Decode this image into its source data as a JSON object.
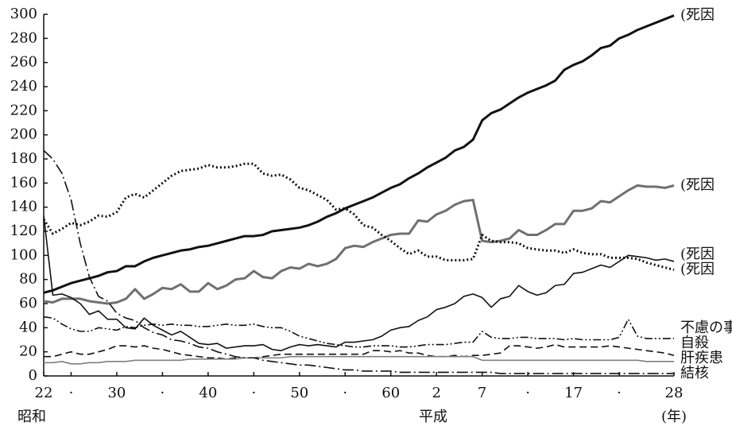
{
  "chart_data": {
    "type": "line",
    "x": [
      1947,
      1948,
      1949,
      1950,
      1951,
      1952,
      1953,
      1954,
      1955,
      1956,
      1957,
      1958,
      1959,
      1960,
      1961,
      1962,
      1963,
      1964,
      1965,
      1966,
      1967,
      1968,
      1969,
      1970,
      1971,
      1972,
      1973,
      1974,
      1975,
      1976,
      1977,
      1978,
      1979,
      1980,
      1981,
      1982,
      1983,
      1984,
      1985,
      1986,
      1987,
      1988,
      1989,
      1990,
      1991,
      1992,
      1993,
      1994,
      1995,
      1996,
      1997,
      1998,
      1999,
      2000,
      2001,
      2002,
      2003,
      2004,
      2005,
      2006,
      2007,
      2008,
      2009,
      2010,
      2011,
      2012,
      2013,
      2014,
      2015,
      2016
    ],
    "xlim": [
      1947,
      2016
    ],
    "xticks": [
      {
        "value": 1947,
        "label": "22"
      },
      {
        "value": 1950,
        "label": "·"
      },
      {
        "value": 1955,
        "label": "30"
      },
      {
        "value": 1960,
        "label": "·"
      },
      {
        "value": 1965,
        "label": "40"
      },
      {
        "value": 1970,
        "label": "·"
      },
      {
        "value": 1975,
        "label": "50"
      },
      {
        "value": 1980,
        "label": "·"
      },
      {
        "value": 1985,
        "label": "60"
      },
      {
        "value": 1990,
        "label": "2"
      },
      {
        "value": 1995,
        "label": "7"
      },
      {
        "value": 2000,
        "label": "·"
      },
      {
        "value": 2005,
        "label": "17"
      },
      {
        "value": 2010,
        "label": "·"
      },
      {
        "value": 2016,
        "label": "28"
      }
    ],
    "era_labels": [
      "昭和",
      "平成"
    ],
    "xlabel": "(年)",
    "ylim": [
      0,
      300
    ],
    "yticks": [
      0,
      20,
      40,
      60,
      80,
      100,
      120,
      140,
      160,
      180,
      200,
      220,
      240,
      260,
      280,
      300
    ],
    "grid": false,
    "series": [
      {
        "name": "(死因",
        "color": "#111111",
        "style": "solid",
        "weight": "bold",
        "values": [
          69,
          71,
          74,
          77,
          79,
          81,
          83,
          86,
          87,
          91,
          91,
          95,
          98,
          100,
          102,
          104,
          105,
          107,
          108,
          110,
          112,
          114,
          116,
          116,
          117,
          120,
          121,
          122,
          123,
          125,
          128,
          132,
          135,
          139,
          142,
          145,
          148,
          152,
          156,
          159,
          164,
          168,
          173,
          177,
          181,
          187,
          190,
          196,
          212,
          218,
          221,
          226,
          231,
          235,
          238,
          241,
          245,
          254,
          258,
          261,
          266,
          272,
          274,
          280,
          283,
          287,
          290,
          293,
          296,
          299
        ]
      },
      {
        "name": "(死因",
        "color": "#707070",
        "style": "solid",
        "weight": "bold",
        "values": [
          62,
          61,
          64,
          64,
          64,
          62,
          61,
          60,
          61,
          64,
          72,
          64,
          68,
          73,
          72,
          76,
          70,
          70,
          77,
          72,
          75,
          80,
          81,
          87,
          82,
          81,
          87,
          90,
          89,
          93,
          91,
          93,
          97,
          106,
          108,
          107,
          111,
          114,
          117,
          118,
          118,
          129,
          128,
          134,
          137,
          142,
          145,
          146,
          112,
          111,
          112,
          114,
          121,
          117,
          117,
          121,
          126,
          126,
          137,
          137,
          139,
          145,
          144,
          149,
          154,
          158,
          157,
          157,
          156,
          158
        ]
      },
      {
        "name": "(死因",
        "color": "#111111",
        "style": "solid",
        "weight": "normal",
        "values": [
          133,
          67,
          68,
          65,
          60,
          51,
          54,
          47,
          47,
          40,
          39,
          48,
          42,
          38,
          34,
          37,
          32,
          27,
          26,
          27,
          23,
          24,
          25,
          25,
          26,
          22,
          21,
          24,
          26,
          25,
          26,
          25,
          24,
          28,
          28,
          29,
          30,
          33,
          38,
          40,
          41,
          46,
          49,
          55,
          57,
          60,
          66,
          68,
          65,
          57,
          64,
          66,
          75,
          70,
          67,
          69,
          75,
          76,
          85,
          86,
          89,
          92,
          90,
          95,
          100,
          99,
          98,
          96,
          97,
          95
        ]
      },
      {
        "name": "(死因",
        "color": "#111111",
        "style": "dotted",
        "weight": "bold",
        "values": [
          130,
          118,
          122,
          127,
          125,
          128,
          133,
          132,
          136,
          148,
          151,
          148,
          154,
          160,
          166,
          170,
          171,
          172,
          175,
          173,
          173,
          174,
          176,
          176,
          168,
          166,
          167,
          163,
          156,
          154,
          150,
          146,
          138,
          139,
          134,
          125,
          123,
          117,
          112,
          106,
          101,
          104,
          99,
          99,
          96,
          96,
          96,
          97,
          117,
          112,
          111,
          111,
          110,
          106,
          105,
          104,
          104,
          102,
          105,
          102,
          101,
          101,
          98,
          98,
          98,
          97,
          94,
          92,
          90,
          88
        ]
      },
      {
        "name": "不慮の事",
        "color": "#111111",
        "style": "dashdotdot",
        "weight": "normal",
        "values": [
          49,
          48,
          43,
          39,
          37,
          37,
          40,
          39,
          38,
          41,
          40,
          42,
          43,
          42,
          43,
          42,
          42,
          41,
          41,
          42,
          43,
          42,
          42,
          43,
          41,
          40,
          40,
          37,
          33,
          31,
          29,
          27,
          26,
          25,
          24,
          24,
          25,
          25,
          25,
          24,
          24,
          25,
          26,
          26,
          26,
          27,
          28,
          28,
          37,
          32,
          31,
          31,
          32,
          32,
          31,
          31,
          31,
          30,
          31,
          30,
          30,
          30,
          30,
          32,
          47,
          33,
          31,
          31,
          31,
          31
        ]
      },
      {
        "name": "自殺",
        "color": "#111111",
        "style": "dashed",
        "weight": "normal",
        "values": [
          16,
          16,
          18,
          20,
          18,
          18,
          20,
          22,
          25,
          25,
          24,
          25,
          23,
          22,
          20,
          18,
          17,
          16,
          15,
          15,
          14,
          15,
          15,
          15,
          16,
          17,
          18,
          18,
          18,
          18,
          18,
          18,
          18,
          18,
          18,
          18,
          21,
          21,
          20,
          21,
          19,
          19,
          17,
          16,
          16,
          17,
          16,
          17,
          17,
          18,
          19,
          25,
          25,
          24,
          23,
          24,
          26,
          24,
          24,
          24,
          24,
          24,
          25,
          24,
          23,
          22,
          21,
          20,
          19,
          17
        ]
      },
      {
        "name": "肝疾患",
        "color": "#808080",
        "style": "solid",
        "weight": "normal",
        "values": [
          11,
          11,
          12,
          10,
          10,
          11,
          11,
          12,
          12,
          12,
          13,
          13,
          13,
          13,
          13,
          13,
          14,
          14,
          14,
          14,
          14,
          14,
          15,
          15,
          15,
          15,
          15,
          16,
          16,
          16,
          16,
          16,
          16,
          16,
          16,
          16,
          16,
          16,
          16,
          16,
          16,
          16,
          16,
          16,
          16,
          16,
          16,
          16,
          13,
          13,
          13,
          13,
          13,
          13,
          13,
          13,
          13,
          13,
          13,
          13,
          13,
          13,
          13,
          13,
          13,
          13,
          12,
          12,
          12,
          12
        ]
      },
      {
        "name": "結核",
        "color": "#111111",
        "style": "dashdot",
        "weight": "normal",
        "values": [
          187,
          180,
          168,
          146,
          110,
          82,
          66,
          62,
          52,
          48,
          46,
          40,
          36,
          34,
          30,
          29,
          27,
          24,
          23,
          20,
          18,
          16,
          15,
          15,
          13,
          12,
          11,
          10,
          9,
          9,
          8,
          7,
          6,
          5,
          5,
          4,
          4,
          4,
          4,
          3,
          3,
          3,
          3,
          3,
          3,
          3,
          3,
          3,
          3,
          3,
          2,
          2,
          2,
          2,
          2,
          2,
          2,
          2,
          2,
          2,
          2,
          2,
          2,
          2,
          2,
          2,
          2,
          2,
          2,
          2
        ]
      }
    ]
  }
}
